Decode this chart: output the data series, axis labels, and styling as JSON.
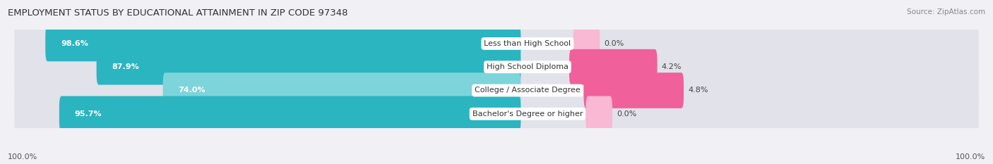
{
  "title": "EMPLOYMENT STATUS BY EDUCATIONAL ATTAINMENT IN ZIP CODE 97348",
  "source": "Source: ZipAtlas.com",
  "categories": [
    "Less than High School",
    "High School Diploma",
    "College / Associate Degree",
    "Bachelor's Degree or higher"
  ],
  "labor_force": [
    98.6,
    87.9,
    74.0,
    95.7
  ],
  "unemployed": [
    0.0,
    4.2,
    4.8,
    0.0
  ],
  "labor_force_color": "#2bb5c0",
  "labor_force_light_color": "#7dd4db",
  "unemployed_color": "#f0609a",
  "unemployed_light_color": "#f9b8d3",
  "bar_bg_color": "#e2e2ea",
  "background_color": "#f0f0f5",
  "title_fontsize": 9.5,
  "source_fontsize": 7.5,
  "label_fontsize": 8,
  "pct_fontsize": 8,
  "cat_fontsize": 8
}
